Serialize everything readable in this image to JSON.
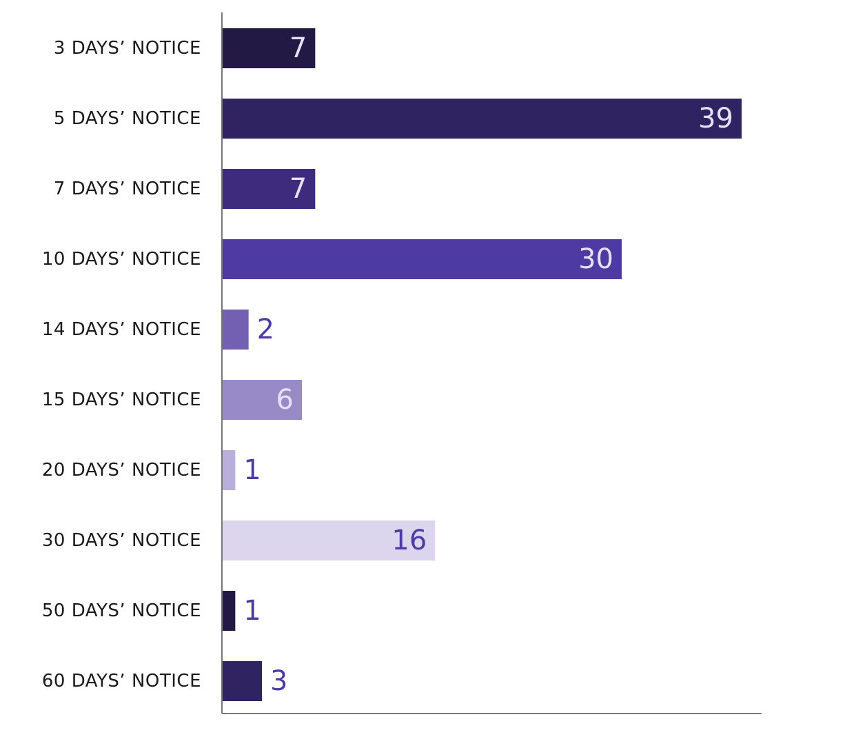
{
  "chart_data": {
    "type": "bar",
    "orientation": "horizontal",
    "title": "",
    "xlabel": "",
    "ylabel": "",
    "xlim": [
      0,
      40.5
    ],
    "grid": false,
    "categories": [
      "3 DAYS’ NOTICE",
      "5 DAYS’ NOTICE",
      "7 DAYS’ NOTICE",
      "10 DAYS’ NOTICE",
      "14 DAYS’ NOTICE",
      "15 DAYS’ NOTICE",
      "20 DAYS’ NOTICE",
      "30 DAYS’ NOTICE",
      "50 DAYS’ NOTICE",
      "60 DAYS’ NOTICE"
    ],
    "values": [
      7,
      39,
      7,
      30,
      2,
      6,
      1,
      16,
      1,
      3
    ],
    "bar_colors": [
      "#221a45",
      "#2f2461",
      "#3f2b7e",
      "#4e3aa3",
      "#7360b3",
      "#978ac6",
      "#b8afdb",
      "#dbd6ee",
      "#221a45",
      "#2f2461"
    ],
    "label_colors": [
      "#e6e1f5",
      "#e6e1f5",
      "#e6e1f5",
      "#e6e1f5",
      "#4e3aa3",
      "#e6e1f5",
      "#4e3aa3",
      "#4e3aa3",
      "#4e3aa3",
      "#4e3aa3"
    ],
    "label_inside": [
      true,
      true,
      true,
      true,
      false,
      true,
      false,
      true,
      false,
      false
    ]
  }
}
